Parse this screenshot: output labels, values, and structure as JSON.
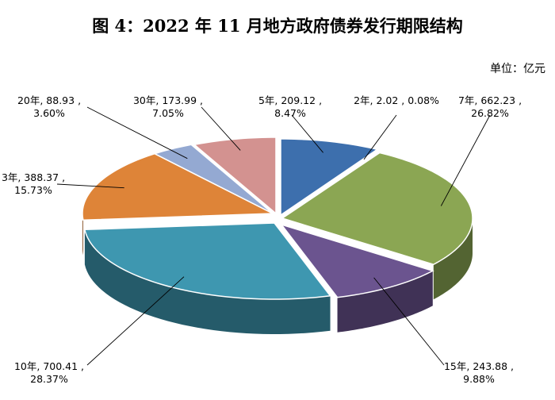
{
  "chart_data": {
    "type": "pie",
    "title": "图 4：2022 年 11 月地方政府债券发行期限结构",
    "unit": "单位：亿元",
    "slices": [
      {
        "name": "5年",
        "value": 209.12,
        "percent": "8.47%",
        "line1": "5年, 209.12 ,",
        "line2": "8.47%",
        "color": "#3d6fad"
      },
      {
        "name": "2年",
        "value": 2.02,
        "percent": "0.08%",
        "line1": "2年, 2.02 , 0.08%",
        "line2": "",
        "color": "#a0302e"
      },
      {
        "name": "7年",
        "value": 662.23,
        "percent": "26.82%",
        "line1": "7年, 662.23 ,",
        "line2": "26.82%",
        "color": "#8ba653"
      },
      {
        "name": "15年",
        "value": 243.88,
        "percent": "9.88%",
        "line1": "15年, 243.88 ,",
        "line2": "9.88%",
        "color": "#6b548f"
      },
      {
        "name": "10年",
        "value": 700.41,
        "percent": "28.37%",
        "line1": "10年, 700.41 ,",
        "line2": "28.37%",
        "color": "#3e97b0"
      },
      {
        "name": "3年",
        "value": 388.37,
        "percent": "15.73%",
        "line1": "3年, 388.37 ,",
        "line2": "15.73%",
        "color": "#de8438"
      },
      {
        "name": "20年",
        "value": 88.93,
        "percent": "3.60%",
        "line1": "20年, 88.93 ,",
        "line2": "3.60%",
        "color": "#94a9d2"
      },
      {
        "name": "30年",
        "value": 173.99,
        "percent": "7.05%",
        "line1": "30年, 173.99 ,",
        "line2": "7.05%",
        "color": "#d39290"
      }
    ]
  }
}
